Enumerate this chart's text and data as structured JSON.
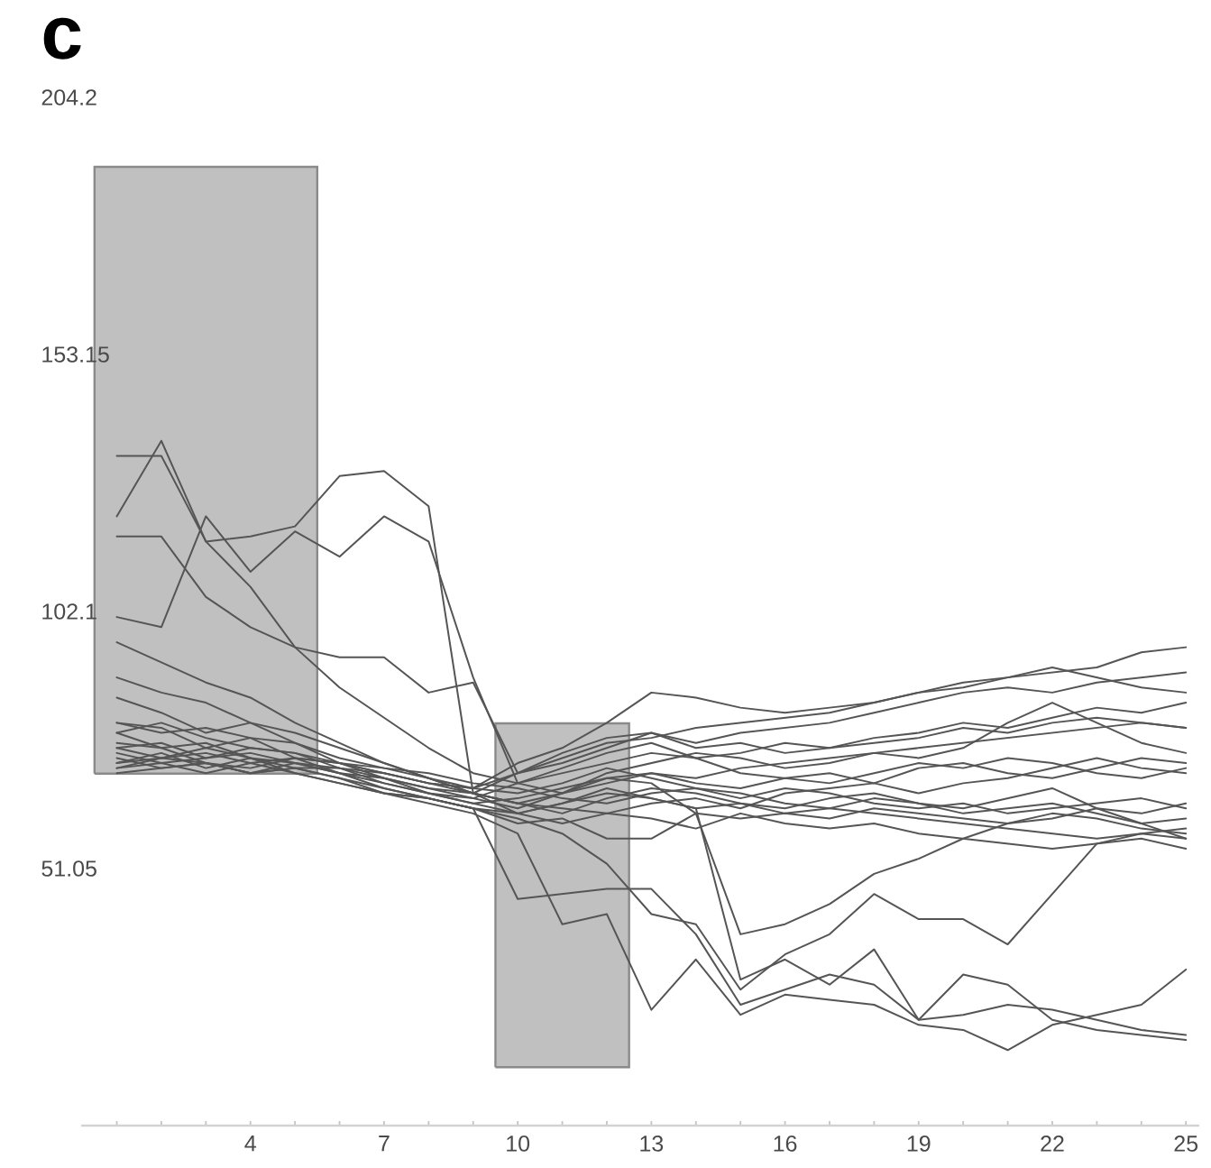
{
  "chart_data": {
    "type": "line",
    "title": "c",
    "x": [
      1,
      2,
      3,
      4,
      5,
      6,
      7,
      8,
      9,
      10,
      11,
      12,
      13,
      14,
      15,
      16,
      17,
      18,
      19,
      20,
      21,
      22,
      23,
      24,
      25
    ],
    "xlim": [
      0.2,
      25.3
    ],
    "xticks": [
      {
        "value": 1,
        "label": null
      },
      {
        "value": 2,
        "label": null
      },
      {
        "value": 3,
        "label": null
      },
      4,
      {
        "value": 5,
        "label": null
      },
      {
        "value": 6,
        "label": null
      },
      7,
      {
        "value": 8,
        "label": null
      },
      {
        "value": 9,
        "label": null
      },
      10,
      {
        "value": 11,
        "label": null
      },
      {
        "value": 12,
        "label": null
      },
      13,
      {
        "value": 14,
        "label": null
      },
      {
        "value": 15,
        "label": null
      },
      16,
      {
        "value": 17,
        "label": null
      },
      {
        "value": 18,
        "label": null
      },
      19,
      {
        "value": 20,
        "label": null
      },
      {
        "value": 21,
        "label": null
      },
      22,
      {
        "value": 23,
        "label": null
      },
      {
        "value": 24,
        "label": null
      },
      25
    ],
    "ylim": [
      0,
      204.2
    ],
    "yticks": [
      51.05,
      102.1,
      153.15,
      204.2
    ],
    "series": [
      {
        "type": "area",
        "color": "#c0c0c0",
        "x": [
          0.5,
          5.5
        ],
        "values": [
          null,
          null
        ],
        "lower": [
          69.9,
          69.9
        ],
        "upper": [
          190.4,
          190.4
        ]
      },
      {
        "type": "area",
        "color": "#c0c0c0",
        "x": [
          9.5,
          12.5
        ],
        "values": [
          null,
          null
        ],
        "lower": [
          11.6,
          11.6
        ],
        "upper": [
          79.9,
          79.9
        ]
      },
      {
        "color": "#555555",
        "values": [
          121,
          136,
          116,
          117,
          119,
          129,
          130,
          123,
          66,
          62,
          64,
          67,
          65,
          63,
          64,
          62,
          63,
          65,
          64,
          62,
          63,
          64,
          62,
          60,
          61
        ]
      },
      {
        "color": "#555555",
        "values": [
          133,
          133,
          116,
          107,
          95,
          87,
          81,
          75,
          70,
          68,
          71,
          74,
          76,
          73,
          74,
          76,
          75,
          77,
          78,
          80,
          79,
          81,
          83,
          82,
          84
        ]
      },
      {
        "color": "#555555",
        "values": [
          101,
          99,
          121,
          110,
          118,
          113,
          121,
          116,
          89,
          68,
          66,
          69,
          70,
          68,
          67,
          69,
          70,
          68,
          71,
          72,
          70,
          69,
          71,
          73,
          72
        ]
      },
      {
        "color": "#555555",
        "values": [
          117,
          117,
          105,
          99,
          95,
          93,
          93,
          86,
          88,
          70,
          72,
          75,
          78,
          76,
          78,
          79,
          80,
          82,
          84,
          86,
          87,
          86,
          88,
          89,
          90
        ]
      },
      {
        "color": "#555555",
        "values": [
          80,
          78,
          79,
          77,
          76,
          72,
          70,
          68,
          67,
          72,
          75,
          80,
          86,
          85,
          83,
          82,
          83,
          84,
          86,
          87,
          89,
          90,
          91,
          94,
          95
        ]
      },
      {
        "color": "#555555",
        "values": [
          96,
          92,
          88,
          85,
          80,
          76,
          72,
          69,
          66,
          70,
          73,
          76,
          77,
          79,
          80,
          81,
          82,
          84,
          86,
          88,
          89,
          91,
          89,
          87,
          86
        ]
      },
      {
        "color": "#555555",
        "values": [
          75,
          76,
          73,
          74,
          72,
          71,
          68,
          66,
          64,
          65,
          67,
          69,
          68,
          62,
          38,
          40,
          44,
          50,
          53,
          57,
          60,
          61,
          63,
          62,
          64
        ]
      },
      {
        "color": "#555555",
        "values": [
          72,
          74,
          71,
          73,
          71,
          69,
          67,
          65,
          63,
          62,
          64,
          66,
          65,
          63,
          29,
          33,
          28,
          35,
          21,
          30,
          28,
          21,
          19,
          18,
          17
        ]
      },
      {
        "color": "#555555",
        "values": [
          78,
          75,
          76,
          73,
          70,
          68,
          66,
          64,
          62,
          58,
          40,
          42,
          23,
          33,
          22,
          26,
          25,
          24,
          20,
          19,
          15,
          20,
          22,
          24,
          31
        ]
      },
      {
        "color": "#555555",
        "values": [
          73,
          71,
          72,
          70,
          71,
          69,
          66,
          65,
          63,
          45,
          46,
          47,
          47,
          38,
          24,
          27,
          30,
          28,
          21,
          22,
          24,
          23,
          21,
          19,
          18
        ]
      },
      {
        "color": "#555555",
        "values": [
          71,
          73,
          72,
          70,
          72,
          70,
          67,
          65,
          63,
          61,
          58,
          52,
          42,
          40,
          27,
          34,
          38,
          46,
          41,
          41,
          36,
          46,
          56,
          58,
          59
        ]
      },
      {
        "color": "#555555",
        "values": [
          89,
          86,
          84,
          80,
          78,
          75,
          72,
          69,
          66,
          64,
          66,
          68,
          70,
          69,
          71,
          72,
          73,
          74,
          75,
          76,
          77,
          78,
          79,
          80,
          79
        ]
      },
      {
        "color": "#555555",
        "values": [
          85,
          82,
          78,
          80,
          76,
          73,
          71,
          70,
          68,
          67,
          65,
          64,
          66,
          67,
          66,
          64,
          63,
          62,
          61,
          60,
          59,
          58,
          57,
          58,
          57
        ]
      },
      {
        "color": "#555555",
        "values": [
          80,
          79,
          75,
          77,
          73,
          72,
          69,
          67,
          65,
          63,
          66,
          70,
          72,
          74,
          73,
          71,
          72,
          74,
          73,
          75,
          80,
          84,
          80,
          76,
          74
        ]
      },
      {
        "color": "#555555",
        "values": [
          78,
          80,
          77,
          75,
          74,
          71,
          70,
          68,
          66,
          64,
          62,
          65,
          67,
          66,
          64,
          63,
          65,
          66,
          64,
          63,
          65,
          67,
          63,
          60,
          57
        ]
      },
      {
        "color": "#555555",
        "values": [
          75,
          73,
          74,
          72,
          73,
          70,
          68,
          66,
          65,
          68,
          70,
          72,
          74,
          73,
          70,
          69,
          68,
          70,
          72,
          71,
          73,
          72,
          70,
          69,
          71
        ]
      },
      {
        "color": "#555555",
        "values": [
          72,
          73,
          75,
          73,
          72,
          70,
          69,
          67,
          66,
          64,
          63,
          62,
          64,
          65,
          63,
          66,
          67,
          68,
          66,
          68,
          69,
          71,
          73,
          71,
          70
        ]
      },
      {
        "color": "#555555",
        "values": [
          71,
          72,
          70,
          72,
          70,
          68,
          66,
          65,
          63,
          60,
          61,
          57,
          57,
          62,
          61,
          62,
          61,
          63,
          62,
          61,
          60,
          62,
          61,
          59,
          58
        ]
      },
      {
        "color": "#555555",
        "values": [
          74,
          72,
          73,
          75,
          74,
          72,
          70,
          68,
          67,
          70,
          74,
          77,
          78,
          75,
          76,
          74,
          75,
          76,
          77,
          79,
          78,
          80,
          81,
          80,
          79
        ]
      },
      {
        "color": "#555555",
        "values": [
          76,
          75,
          72,
          71,
          73,
          72,
          71,
          69,
          67,
          66,
          68,
          71,
          69,
          67,
          65,
          67,
          66,
          64,
          63,
          64,
          62,
          63,
          64,
          65,
          63
        ]
      },
      {
        "color": "#555555",
        "values": [
          70,
          71,
          72,
          70,
          71,
          71,
          69,
          66,
          64,
          62,
          60,
          62,
          61,
          59,
          62,
          60,
          59,
          60,
          58,
          57,
          56,
          55,
          56,
          57,
          55
        ]
      }
    ]
  }
}
